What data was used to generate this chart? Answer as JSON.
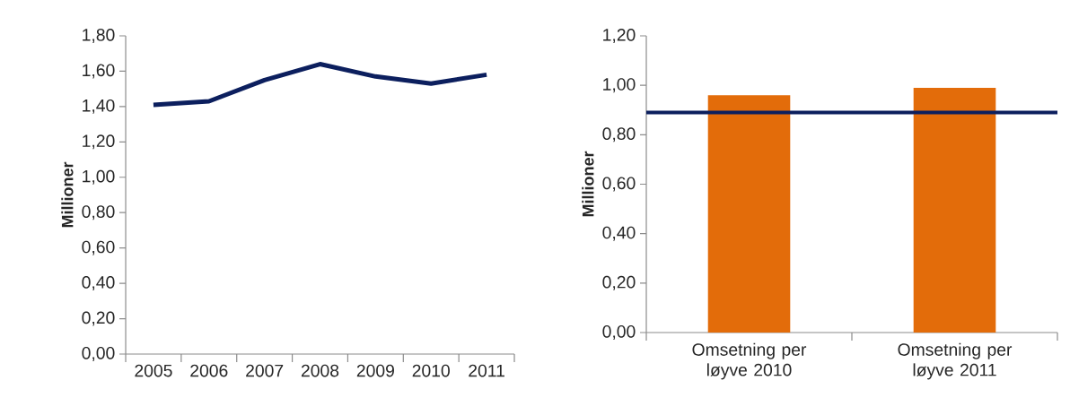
{
  "chart_data": [
    {
      "type": "line",
      "categories": [
        "2005",
        "2006",
        "2007",
        "2008",
        "2009",
        "2010",
        "2011"
      ],
      "values": [
        1.41,
        1.43,
        1.55,
        1.64,
        1.57,
        1.53,
        1.58
      ],
      "color": "#0c1f5e",
      "ylabel": "Millioner",
      "ylim": [
        0,
        1.8
      ],
      "yticks": [
        {
          "value": 0,
          "label": "0,00"
        },
        {
          "value": 0.2,
          "label": "0,20"
        },
        {
          "value": 0.4,
          "label": "0,40"
        },
        {
          "value": 0.6,
          "label": "0,60"
        },
        {
          "value": 0.8,
          "label": "0,80"
        },
        {
          "value": 1.0,
          "label": "1,00"
        },
        {
          "value": 1.2,
          "label": "1,20"
        },
        {
          "value": 1.4,
          "label": "1,40"
        },
        {
          "value": 1.6,
          "label": "1,60"
        },
        {
          "value": 1.8,
          "label": "1,80"
        }
      ],
      "marker": "none"
    },
    {
      "type": "bar",
      "categories": [
        "Omsetning per løyve 2010",
        "Omsetning per løyve 2011"
      ],
      "values": [
        0.96,
        0.99
      ],
      "color": "#e36c0a",
      "ylabel": "Millioner",
      "ylim": [
        0,
        1.2
      ],
      "yticks": [
        {
          "value": 0,
          "label": "0,00"
        },
        {
          "value": 0.2,
          "label": "0,20"
        },
        {
          "value": 0.4,
          "label": "0,40"
        },
        {
          "value": 0.6,
          "label": "0,60"
        },
        {
          "value": 0.8,
          "label": "0,80"
        },
        {
          "value": 1.0,
          "label": "1,00"
        },
        {
          "value": 1.2,
          "label": "1,20"
        }
      ],
      "ref_lines": [
        {
          "axis": "y",
          "value": 0.89,
          "color": "#0c1f5e"
        }
      ]
    }
  ]
}
